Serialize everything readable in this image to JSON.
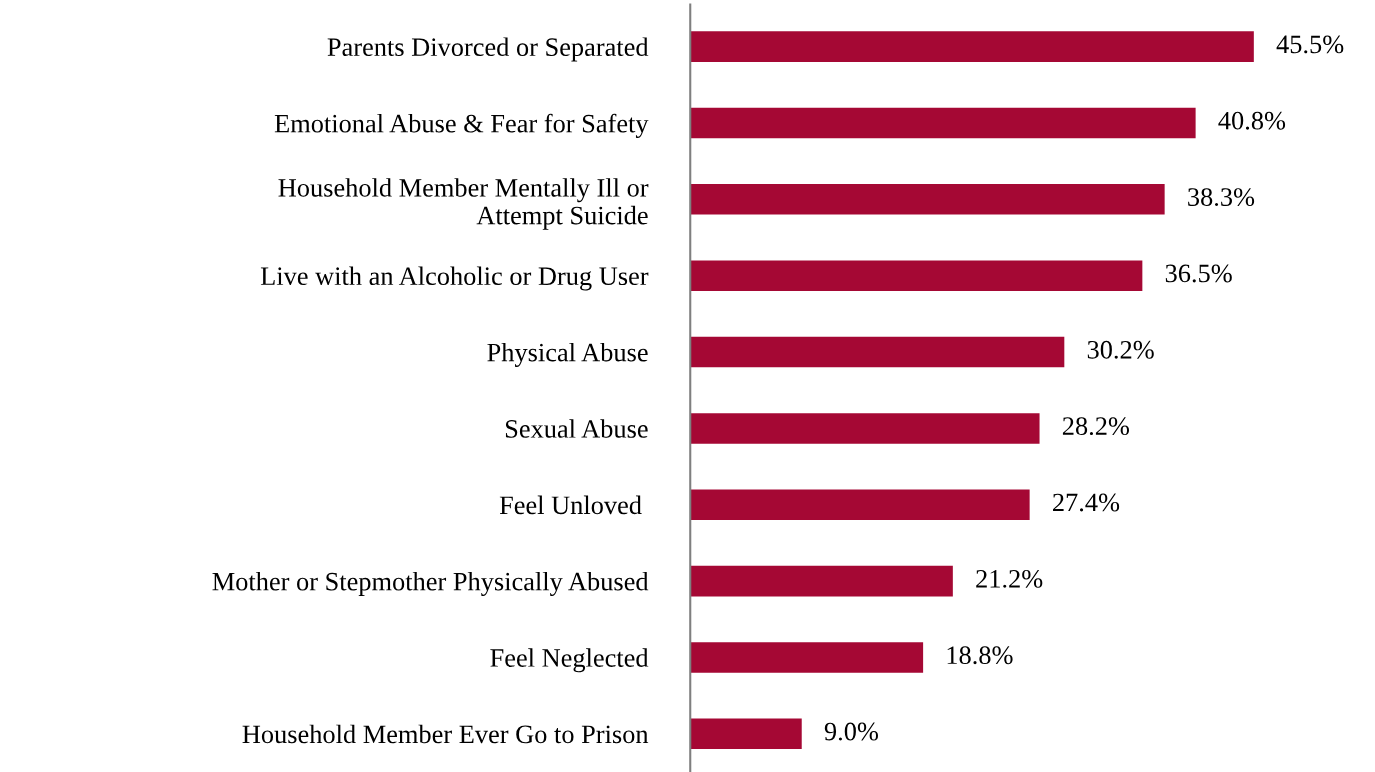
{
  "chart_data": {
    "type": "bar",
    "orientation": "horizontal",
    "categories": [
      "Parents Divorced or Separated",
      "Emotional Abuse & Fear for Safety",
      "Household Member Mentally Ill or\nAttempt Suicide",
      "Live with an Alcoholic or Drug User",
      "Physical Abuse",
      "Sexual Abuse",
      "Feel Unloved ",
      "Mother or Stepmother Physically Abused",
      "Feel Neglected",
      "Household Member Ever Go to Prison"
    ],
    "values": [
      45.5,
      40.8,
      38.3,
      36.5,
      30.2,
      28.2,
      27.4,
      21.2,
      18.8,
      9.0
    ],
    "value_labels": [
      "45.5%",
      "40.8%",
      "38.3%",
      "36.5%",
      "30.2%",
      "28.2%",
      "27.4%",
      "21.2%",
      "18.8%",
      "9.0%"
    ],
    "color": "#a50834",
    "grid": false,
    "legend": false
  }
}
